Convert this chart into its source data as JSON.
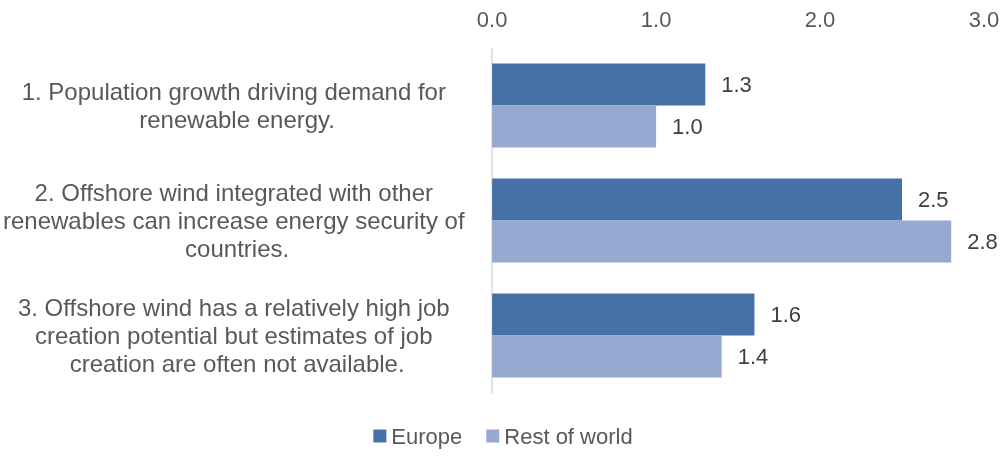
{
  "chart_data": {
    "type": "bar",
    "orientation": "horizontal",
    "categories": [
      "1. Population growth driving demand for renewable energy.",
      "2. Offshore wind integrated with other renewables can increase energy security of countries.",
      "3. Offshore wind has a relatively high job creation potential but estimates of job creation are often not available."
    ],
    "series": [
      {
        "name": "Europe",
        "color": "#4571a6",
        "values": [
          1.3,
          2.5,
          1.6
        ],
        "value_labels": [
          "1.3",
          "2.5",
          "1.6"
        ]
      },
      {
        "name": "Rest of world",
        "color": "#95a9d1",
        "values": [
          1.0,
          2.8,
          1.4
        ],
        "value_labels": [
          "1.0",
          "2.8",
          "1.4"
        ]
      }
    ],
    "xlim": [
      0,
      3
    ],
    "xticks": [
      {
        "value": 0,
        "label": "0.0"
      },
      {
        "value": 1,
        "label": "1.0"
      },
      {
        "value": 2,
        "label": "2.0"
      },
      {
        "value": 3,
        "label": "3.0"
      }
    ],
    "legend": "bottom",
    "grid": false
  }
}
